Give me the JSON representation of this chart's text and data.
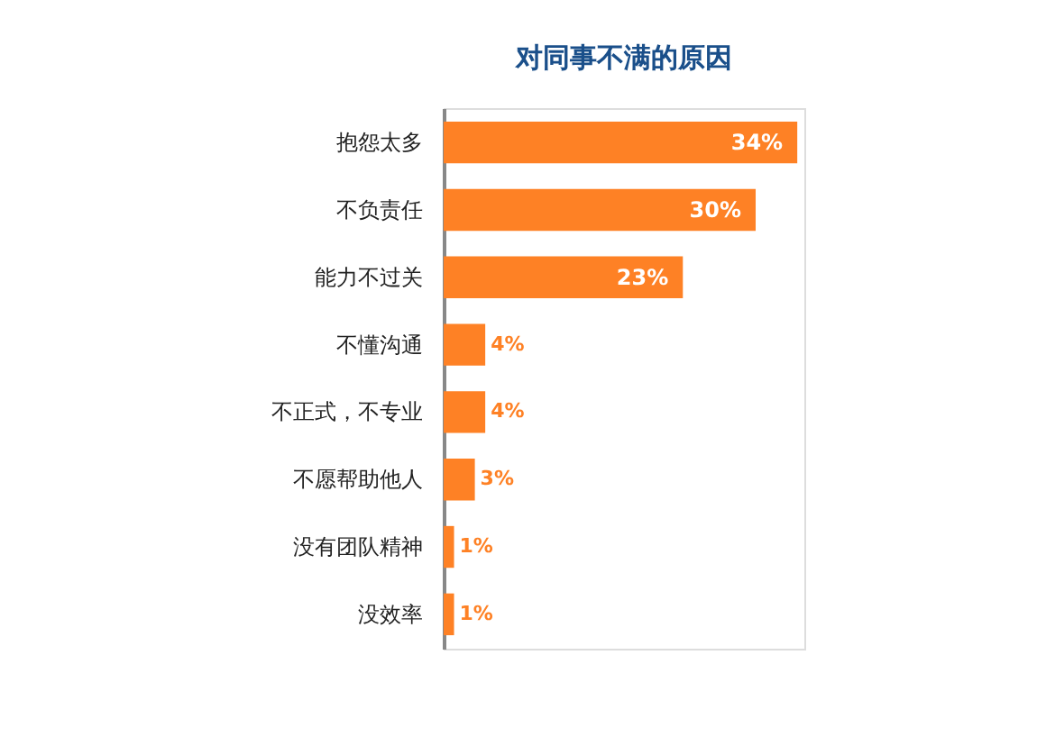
{
  "chart_data": {
    "type": "bar",
    "orientation": "horizontal",
    "title": "对同事不满的原因",
    "categories": [
      "抱怨太多",
      "不负责任",
      "能力不过关",
      "不懂沟通",
      "不正式，不专业",
      "不愿帮助他人",
      "没有团队精神",
      "没效率"
    ],
    "values": [
      34,
      30,
      23,
      4,
      4,
      3,
      1,
      1
    ],
    "value_labels": [
      "34%",
      "30%",
      "23%",
      "4%",
      "4%",
      "3%",
      "1%",
      "1%"
    ],
    "color": "#fe8125"
  }
}
